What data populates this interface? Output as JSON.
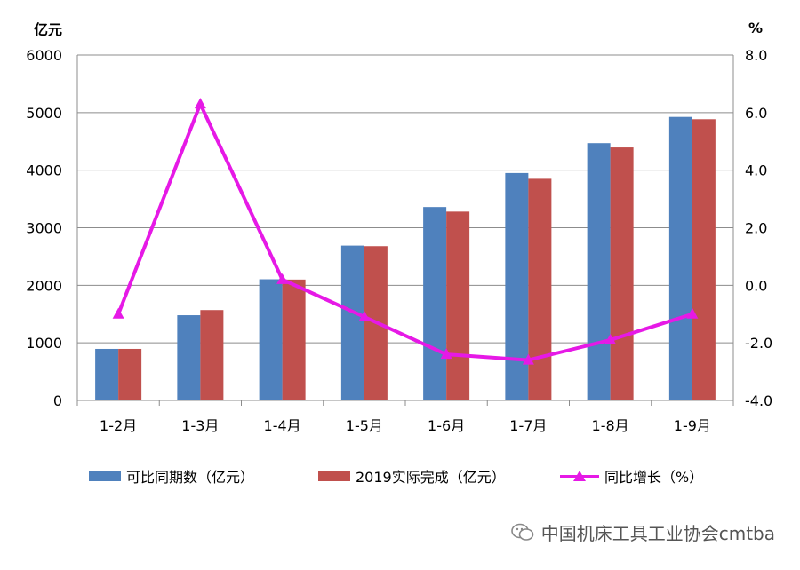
{
  "left_unit": "亿元",
  "right_unit": "%",
  "chart_data": {
    "type": "bar",
    "categories": [
      "1-2月",
      "1-3月",
      "1-4月",
      "1-5月",
      "1-6月",
      "1-7月",
      "1-8月",
      "1-9月"
    ],
    "series": [
      {
        "name": "可比同期数（亿元）",
        "kind": "bar",
        "axis": "left",
        "color": "#4f81bd",
        "values": [
          895,
          1480,
          2105,
          2690,
          3360,
          3950,
          4470,
          4925
        ]
      },
      {
        "name": "2019实际完成（亿元）",
        "kind": "bar",
        "axis": "left",
        "color": "#c0504d",
        "values": [
          895,
          1570,
          2100,
          2680,
          3280,
          3850,
          4395,
          4885
        ]
      },
      {
        "name": "同比增长（%）",
        "kind": "line",
        "axis": "right",
        "color": "#e619e6",
        "marker": "triangle",
        "values": [
          -1.0,
          6.3,
          0.2,
          -1.1,
          -2.4,
          -2.6,
          -1.9,
          -1.0
        ]
      }
    ],
    "y_left": {
      "min": 0,
      "max": 6000,
      "ticks": [
        "0",
        "1000",
        "2000",
        "3000",
        "4000",
        "5000",
        "6000"
      ]
    },
    "y_right": {
      "min": -4,
      "max": 8,
      "ticks": [
        "-4.0",
        "-2.0",
        "0.0",
        "2.0",
        "4.0",
        "6.0",
        "8.0"
      ]
    },
    "grid": true,
    "legend_position": "bottom"
  },
  "legend": {
    "bar1_label": "可比同期数（亿元）",
    "bar2_label": "2019实际完成（亿元）",
    "line_label": "同比增长（%）"
  },
  "watermark": "中国机床工具工业协会cmtba"
}
